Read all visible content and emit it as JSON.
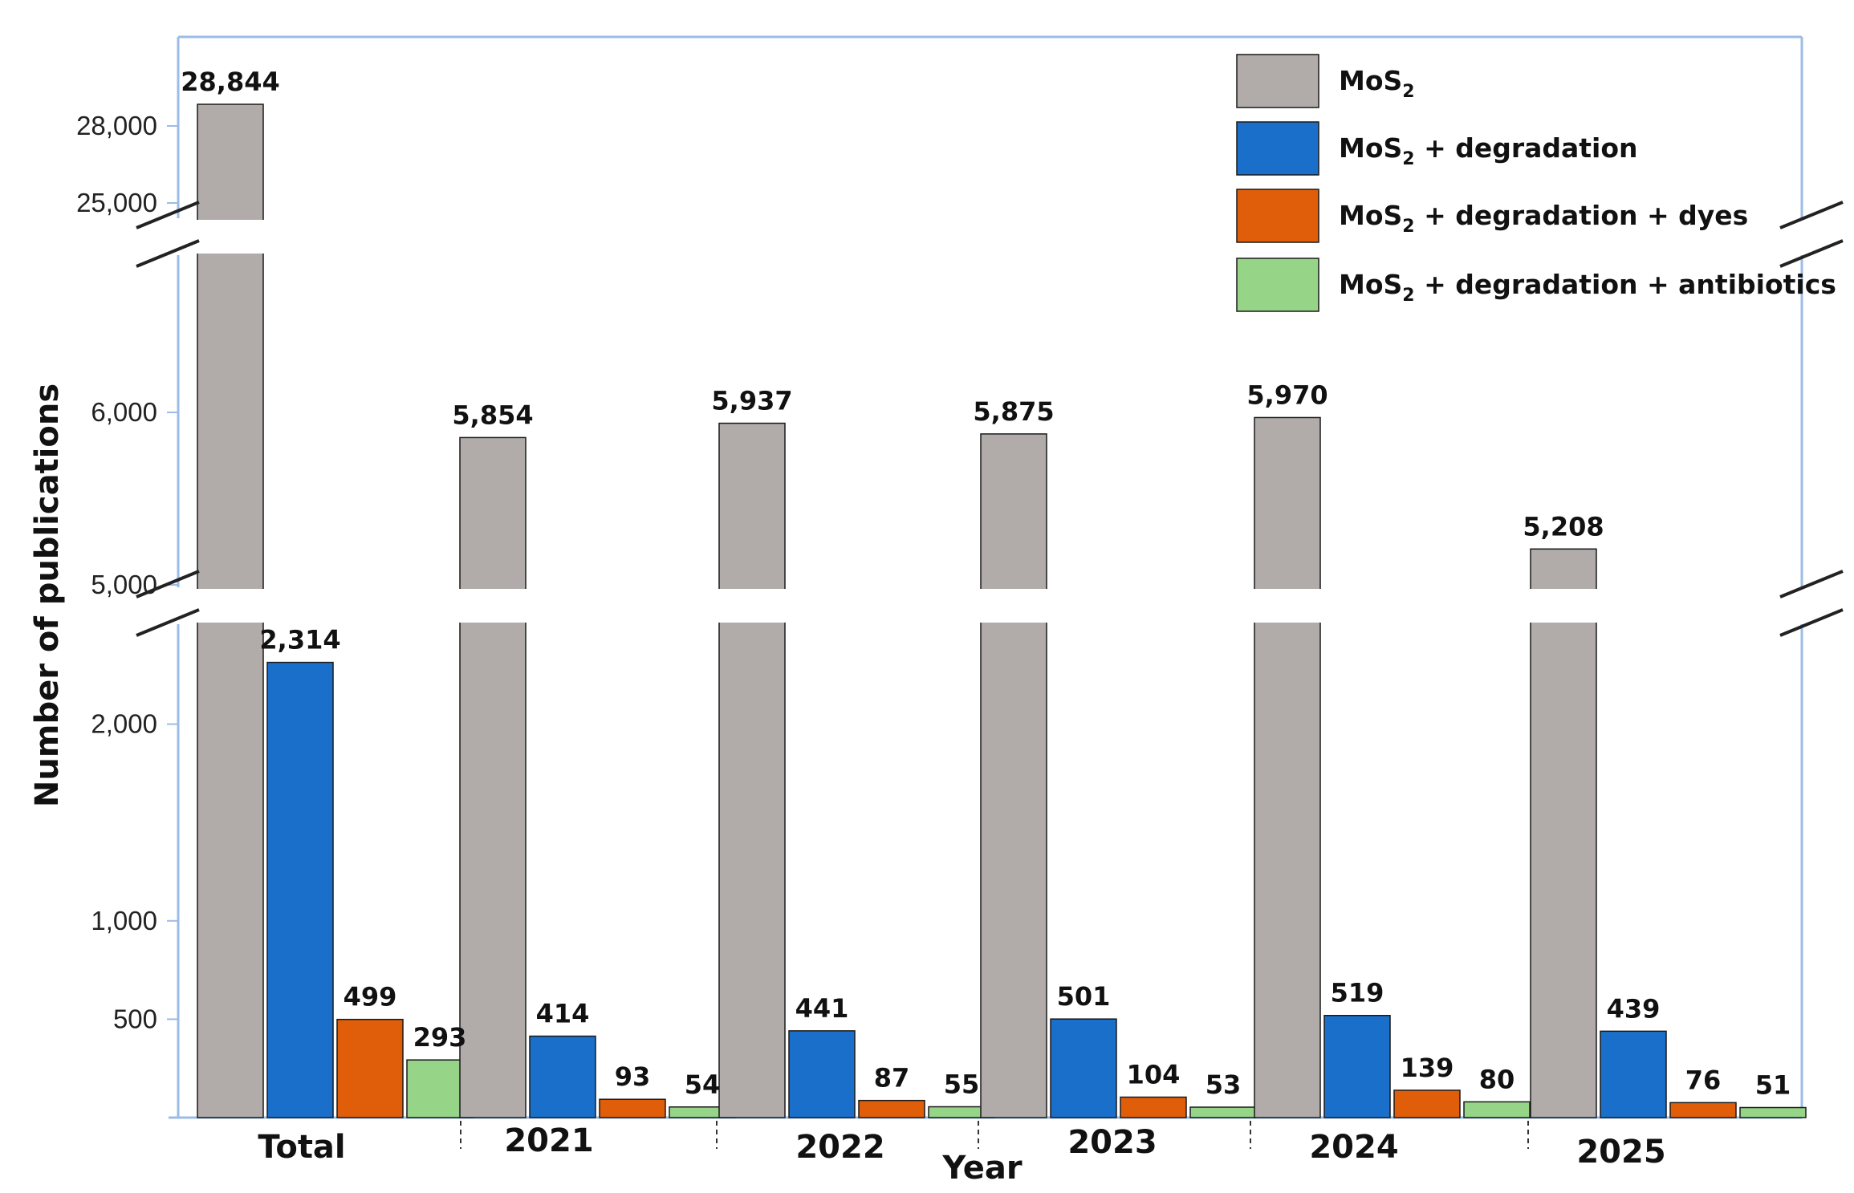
{
  "chart_data": {
    "type": "bar",
    "title": "",
    "xlabel": "Year",
    "ylabel": "Number of publications",
    "y_axis_break": true,
    "y_tick_labels": [
      "500",
      "1,000",
      "2,000",
      "5,000",
      "6,000",
      "25,000",
      "28,000"
    ],
    "y_ticks": [
      500,
      1000,
      2000,
      5000,
      6000,
      25000,
      28000
    ],
    "categories": [
      "Total",
      "2021",
      "2022",
      "2023",
      "2024",
      "2025"
    ],
    "series": [
      {
        "name": "MoS2",
        "formula": "MoS",
        "subscript": "2",
        "suffix": "",
        "color": "#b1acaa",
        "values": [
          28844,
          5854,
          5937,
          5875,
          5970,
          5208
        ],
        "labels": [
          "28,844",
          "5,854",
          "5,937",
          "5,875",
          "5,970",
          "5,208"
        ]
      },
      {
        "name": "MoS2 + degradation",
        "formula": "MoS",
        "subscript": "2",
        "suffix": " + degradation",
        "color": "#1a6fcb",
        "values": [
          2314,
          414,
          441,
          501,
          519,
          439
        ],
        "labels": [
          "2,314",
          "414",
          "441",
          "501",
          "519",
          "439"
        ]
      },
      {
        "name": "MoS2 + degradation + dyes",
        "formula": "MoS",
        "subscript": "2",
        "suffix": " + degradation + dyes",
        "color": "#e05e0a",
        "values": [
          499,
          93,
          87,
          104,
          139,
          76
        ],
        "labels": [
          "499",
          "93",
          "87",
          "104",
          "139",
          "76"
        ]
      },
      {
        "name": "MoS2 + degradation + antibiotics",
        "formula": "MoS",
        "subscript": "2",
        "suffix": " + degradation + antibiotics",
        "color": "#96d487",
        "values": [
          293,
          54,
          55,
          53,
          80,
          51
        ],
        "labels": [
          "293",
          "54",
          "55",
          "53",
          "80",
          "51"
        ]
      }
    ],
    "legend_position": "top-right",
    "grid": false
  }
}
